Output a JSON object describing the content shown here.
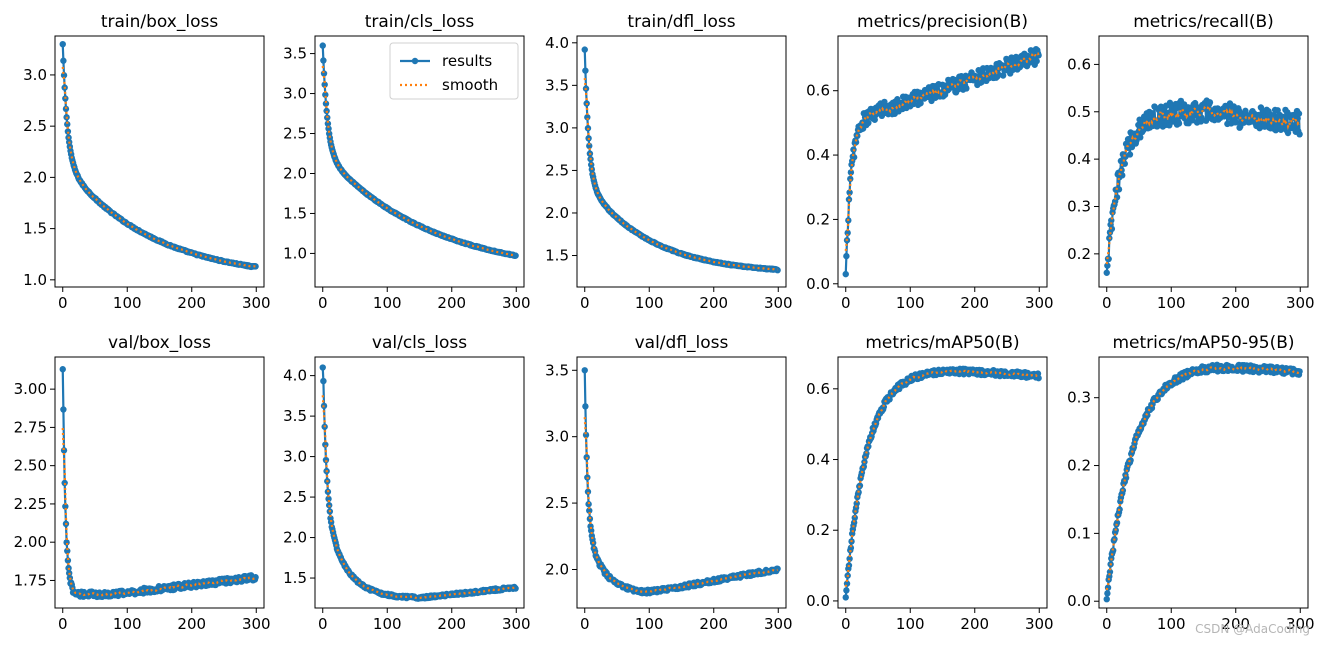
{
  "chart_data": [
    {
      "type": "line",
      "title": "train/box_loss",
      "xlim": [
        -12,
        312
      ],
      "ylim": [
        0.93,
        3.38
      ],
      "xticks": [
        0,
        100,
        200,
        300
      ],
      "xtick_labels": [
        "0",
        "100",
        "200",
        "300"
      ],
      "yticks": [
        1.0,
        1.5,
        2.0,
        2.5,
        3.0
      ],
      "ytick_labels": [
        "1.0",
        "1.5",
        "2.0",
        "2.5",
        "3.0"
      ],
      "model": {
        "kind": "decay",
        "y0": 3.3,
        "y_floor": 1.0,
        "params": [
          1.0,
          7.0,
          1.15,
          0.45
        ]
      },
      "noise": 0.006,
      "series": [
        {
          "name": "results"
        },
        {
          "name": "smooth"
        }
      ]
    },
    {
      "type": "line",
      "title": "train/cls_loss",
      "xlim": [
        -12,
        312
      ],
      "ylim": [
        0.58,
        3.72
      ],
      "xticks": [
        0,
        100,
        200,
        300
      ],
      "xtick_labels": [
        "0",
        "100",
        "200",
        "300"
      ],
      "yticks": [
        1.0,
        1.5,
        2.0,
        2.5,
        3.0,
        3.5
      ],
      "ytick_labels": [
        "1.0",
        "1.5",
        "2.0",
        "2.5",
        "3.0",
        "3.5"
      ],
      "model": {
        "kind": "decay",
        "y0": 3.6,
        "y_floor": 0.72,
        "params": [
          1.3,
          7.0,
          1.55,
          0.55
        ]
      },
      "noise": 0.006,
      "series": [
        {
          "name": "results"
        },
        {
          "name": "smooth"
        }
      ],
      "legend": {
        "position": "upper-right",
        "entries": [
          "results",
          "smooth"
        ]
      }
    },
    {
      "type": "line",
      "title": "train/dfl_loss",
      "xlim": [
        -12,
        312
      ],
      "ylim": [
        1.13,
        4.08
      ],
      "xticks": [
        0,
        100,
        200,
        300
      ],
      "xtick_labels": [
        "0",
        "100",
        "200",
        "300"
      ],
      "yticks": [
        1.5,
        2.0,
        2.5,
        3.0,
        3.5,
        4.0
      ],
      "ytick_labels": [
        "1.5",
        "2.0",
        "2.5",
        "3.0",
        "3.5",
        "4.0"
      ],
      "model": {
        "kind": "decay",
        "y0": 3.92,
        "y_floor": 1.28,
        "params": [
          1.55,
          6.0,
          1.1,
          0.33
        ]
      },
      "noise": 0.006,
      "series": [
        {
          "name": "results"
        },
        {
          "name": "smooth"
        }
      ]
    },
    {
      "type": "line",
      "title": "metrics/precision(B)",
      "xlim": [
        -12,
        312
      ],
      "ylim": [
        -0.01,
        0.77
      ],
      "xticks": [
        0,
        100,
        200,
        300
      ],
      "xtick_labels": [
        "0",
        "100",
        "200",
        "300"
      ],
      "yticks": [
        0.0,
        0.2,
        0.4,
        0.6
      ],
      "ytick_labels": [
        "0.0",
        "0.2",
        "0.4",
        "0.6"
      ],
      "model": {
        "kind": "rise",
        "y0": 0.03,
        "params": [
          0.5,
          8.0,
          0.2,
          0.0007,
          0.0
        ]
      },
      "noise": 0.025,
      "series": [
        {
          "name": "results"
        },
        {
          "name": "smooth"
        }
      ]
    },
    {
      "type": "line",
      "title": "metrics/recall(B)",
      "xlim": [
        -12,
        312
      ],
      "ylim": [
        0.13,
        0.66
      ],
      "xticks": [
        0,
        100,
        200,
        300
      ],
      "xtick_labels": [
        "0",
        "100",
        "200",
        "300"
      ],
      "yticks": [
        0.2,
        0.3,
        0.4,
        0.5,
        0.6
      ],
      "ytick_labels": [
        "0.2",
        "0.3",
        "0.4",
        "0.5",
        "0.6"
      ],
      "model": {
        "kind": "rise",
        "y0": 0.16,
        "params": [
          0.5,
          22.0,
          0.1,
          0.0,
          -0.00016
        ]
      },
      "noise": 0.025,
      "series": [
        {
          "name": "results"
        },
        {
          "name": "smooth"
        }
      ]
    },
    {
      "type": "line",
      "title": "val/box_loss",
      "xlim": [
        -12,
        312
      ],
      "ylim": [
        1.57,
        3.21
      ],
      "xticks": [
        0,
        100,
        200,
        300
      ],
      "xtick_labels": [
        "0",
        "100",
        "200",
        "300"
      ],
      "yticks": [
        1.75,
        2.0,
        2.25,
        2.5,
        2.75,
        3.0
      ],
      "ytick_labels": [
        "1.75",
        "2.00",
        "2.25",
        "2.50",
        "2.75",
        "3.00"
      ],
      "model": {
        "kind": "decay",
        "y0": 3.13,
        "y_floor": 1.66,
        "params": [
          1.55,
          4.0,
          0.0,
          1.0,
          0.0005,
          80.0
        ]
      },
      "noise": 0.018,
      "series": [
        {
          "name": "results"
        },
        {
          "name": "smooth"
        }
      ]
    },
    {
      "type": "line",
      "title": "val/cls_loss",
      "xlim": [
        -12,
        312
      ],
      "ylim": [
        1.13,
        4.23
      ],
      "xticks": [
        0,
        100,
        200,
        300
      ],
      "xtick_labels": [
        "0",
        "100",
        "200",
        "300"
      ],
      "yticks": [
        1.5,
        2.0,
        2.5,
        3.0,
        3.5,
        4.0
      ],
      "ytick_labels": [
        "1.5",
        "2.0",
        "2.5",
        "3.0",
        "3.5",
        "4.0"
      ],
      "model": {
        "kind": "decay",
        "y0": 4.1,
        "y_floor": 1.25,
        "params": [
          1.8,
          5.0,
          1.25,
          30.0,
          0.0009,
          150.0
        ]
      },
      "noise": 0.015,
      "series": [
        {
          "name": "results"
        },
        {
          "name": "smooth"
        }
      ]
    },
    {
      "type": "line",
      "title": "val/dfl_loss",
      "xlim": [
        -12,
        312
      ],
      "ylim": [
        1.71,
        3.6
      ],
      "xticks": [
        0,
        100,
        200,
        300
      ],
      "xtick_labels": [
        "0",
        "100",
        "200",
        "300"
      ],
      "yticks": [
        2.0,
        2.5,
        3.0,
        3.5
      ],
      "ytick_labels": [
        "2.0",
        "2.5",
        "3.0",
        "3.5"
      ],
      "model": {
        "kind": "decay",
        "y0": 3.5,
        "y_floor": 1.82,
        "params": [
          1.1,
          4.0,
          0.55,
          25.0,
          0.0009,
          95.0
        ]
      },
      "noise": 0.014,
      "series": [
        {
          "name": "results"
        },
        {
          "name": "smooth"
        }
      ]
    },
    {
      "type": "line",
      "title": "metrics/mAP50(B)",
      "xlim": [
        -12,
        312
      ],
      "ylim": [
        -0.02,
        0.69
      ],
      "xticks": [
        0,
        100,
        200,
        300
      ],
      "xtick_labels": [
        "0",
        "100",
        "200",
        "300"
      ],
      "yticks": [
        0.0,
        0.2,
        0.4,
        0.6
      ],
      "ytick_labels": [
        "0.0",
        "0.2",
        "0.4",
        "0.6"
      ],
      "model": {
        "kind": "rise",
        "y0": 0.01,
        "params": [
          0.655,
          32.0,
          0.0,
          0.0,
          -0.00012
        ]
      },
      "noise": 0.008,
      "series": [
        {
          "name": "results"
        },
        {
          "name": "smooth"
        }
      ]
    },
    {
      "type": "line",
      "title": "metrics/mAP50-95(B)",
      "xlim": [
        -12,
        312
      ],
      "ylim": [
        -0.01,
        0.36
      ],
      "xticks": [
        0,
        100,
        200,
        300
      ],
      "xtick_labels": [
        "0",
        "100",
        "200",
        "300"
      ],
      "yticks": [
        0.0,
        0.1,
        0.2,
        0.3
      ],
      "ytick_labels": [
        "0.0",
        "0.1",
        "0.2",
        "0.3"
      ],
      "model": {
        "kind": "rise",
        "y0": 0.003,
        "params": [
          0.35,
          40.0,
          0.0,
          0.0,
          -8e-05
        ]
      },
      "noise": 0.005,
      "series": [
        {
          "name": "results"
        },
        {
          "name": "smooth"
        }
      ]
    }
  ],
  "colors": {
    "results": "#1f77b4",
    "smooth": "#ff7f0e",
    "axes": "#000000",
    "background": "#ffffff"
  },
  "watermark": "CSDN @AdaCoding"
}
